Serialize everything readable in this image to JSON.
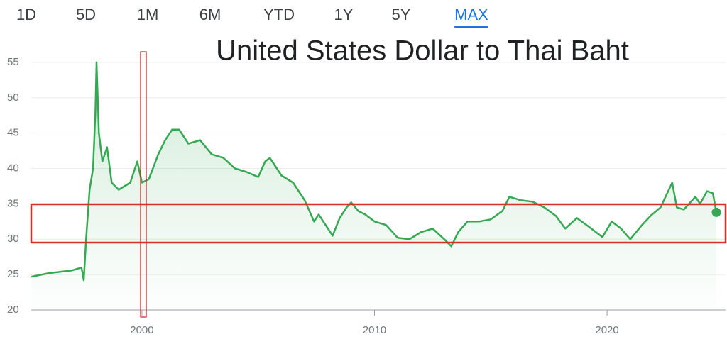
{
  "chart_data": {
    "type": "line",
    "title": "United States Dollar to Thai Baht",
    "range_tabs": [
      "1D",
      "5D",
      "1M",
      "6M",
      "YTD",
      "1Y",
      "5Y",
      "MAX"
    ],
    "active_tab": "MAX",
    "x": [
      1995.25,
      1996,
      1997,
      1997.4,
      1997.5,
      1997.6,
      1997.75,
      1997.9,
      1998.0,
      1998.05,
      1998.15,
      1998.3,
      1998.5,
      1998.7,
      1999.0,
      1999.5,
      1999.8,
      2000.0,
      2000.3,
      2000.7,
      2001.0,
      2001.3,
      2001.6,
      2002.0,
      2002.5,
      2003.0,
      2003.5,
      2004.0,
      2004.5,
      2005.0,
      2005.3,
      2005.5,
      2006.0,
      2006.5,
      2007.0,
      2007.4,
      2007.6,
      2008.0,
      2008.2,
      2008.5,
      2008.8,
      2009.0,
      2009.3,
      2009.6,
      2010.0,
      2010.5,
      2011.0,
      2011.5,
      2012.0,
      2012.5,
      2013.0,
      2013.3,
      2013.6,
      2014.0,
      2014.5,
      2015.0,
      2015.5,
      2015.8,
      2016.3,
      2016.8,
      2017.3,
      2017.8,
      2018.2,
      2018.7,
      2019.2,
      2019.8,
      2020.2,
      2020.6,
      2021.0,
      2021.5,
      2021.9,
      2022.3,
      2022.8,
      2023.0,
      2023.3,
      2023.8,
      2024.0,
      2024.3,
      2024.55,
      2024.7
    ],
    "series": [
      {
        "name": "USD/THB",
        "color": "#34a853",
        "values": [
          24.7,
          25.2,
          25.6,
          26,
          24.2,
          30,
          37,
          40,
          48,
          55,
          45,
          41,
          43,
          38,
          37,
          38,
          41,
          38,
          38.5,
          42,
          44,
          45.5,
          45.5,
          43.5,
          44,
          42,
          41.5,
          40,
          39.5,
          38.8,
          41,
          41.5,
          39,
          38,
          35.5,
          32.5,
          33.5,
          31.5,
          30.5,
          33,
          34.5,
          35.2,
          34,
          33.5,
          32.5,
          32,
          30.2,
          30,
          31,
          31.5,
          30,
          29,
          31,
          32.5,
          32.5,
          32.8,
          34,
          36,
          35.5,
          35.3,
          34.5,
          33.3,
          31.5,
          33,
          31.8,
          30.3,
          32.5,
          31.5,
          30,
          32,
          33.4,
          34.5,
          38,
          34.5,
          34.2,
          36,
          35,
          36.8,
          36.5,
          33.8
        ]
      }
    ],
    "xlim": [
      1995.24,
      2024.73
    ],
    "xticks": [
      2000,
      2010,
      2020
    ],
    "ylim": [
      20,
      57
    ],
    "yticks": [
      20,
      25,
      30,
      35,
      40,
      45,
      50,
      55
    ],
    "grid": true
  }
}
